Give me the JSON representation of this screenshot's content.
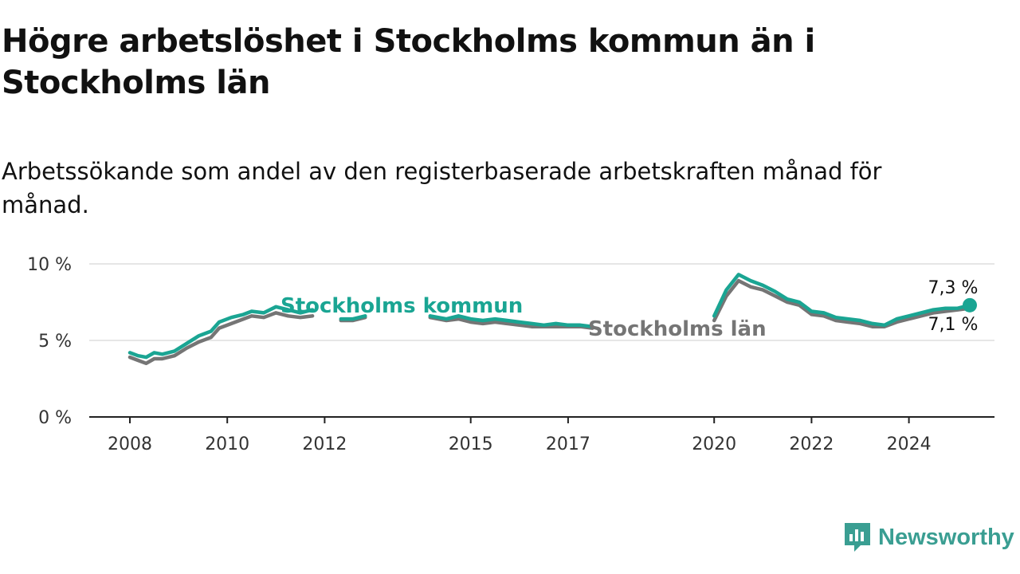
{
  "title": "Högre arbetslöshet i Stockholms kommun än i Stockholms län",
  "subtitle": "Arbetssökande som andel av den registerbaserade arbetskraften månad för månad.",
  "brand": {
    "name": "Newsworthy",
    "icon": "newsworthy-logo-icon",
    "color": "#3a9e92"
  },
  "chart_data": {
    "type": "line",
    "x_ticks": [
      "2008",
      "2010",
      "2012",
      "2015",
      "2017",
      "2020",
      "2022",
      "2024"
    ],
    "y_ticks": [
      "0 %",
      "5 %",
      "10 %"
    ],
    "ylim": [
      0,
      10
    ],
    "grid": "horizontal",
    "colors": {
      "kommun": "#1aa593",
      "lan": "#757575",
      "grid": "#dddddd",
      "axis": "#222222"
    },
    "series": [
      {
        "name": "Stockholms kommun",
        "color": "#1aa593",
        "end_label": "7,3 %",
        "segments": [
          [
            [
              "2008-01",
              4.2
            ],
            [
              "2008-03",
              4.0
            ],
            [
              "2008-05",
              3.9
            ],
            [
              "2008-07",
              4.2
            ],
            [
              "2008-09",
              4.1
            ],
            [
              "2008-12",
              4.3
            ],
            [
              "2009-03",
              4.8
            ],
            [
              "2009-06",
              5.3
            ],
            [
              "2009-09",
              5.6
            ],
            [
              "2009-11",
              6.2
            ],
            [
              "2010-02",
              6.5
            ],
            [
              "2010-05",
              6.7
            ],
            [
              "2010-07",
              6.9
            ],
            [
              "2010-10",
              6.8
            ],
            [
              "2011-01",
              7.2
            ],
            [
              "2011-04",
              7.0
            ],
            [
              "2011-07",
              6.8
            ],
            [
              "2011-10",
              7.0
            ]
          ],
          [
            [
              "2012-05",
              6.4
            ],
            [
              "2012-08",
              6.4
            ],
            [
              "2012-11",
              6.6
            ]
          ],
          [
            [
              "2014-03",
              6.6
            ],
            [
              "2014-07",
              6.4
            ],
            [
              "2014-10",
              6.6
            ],
            [
              "2015-01",
              6.4
            ],
            [
              "2015-04",
              6.3
            ],
            [
              "2015-07",
              6.4
            ],
            [
              "2015-10",
              6.3
            ],
            [
              "2016-01",
              6.2
            ],
            [
              "2016-04",
              6.1
            ],
            [
              "2016-07",
              6.0
            ],
            [
              "2016-10",
              6.1
            ],
            [
              "2017-01",
              6.0
            ],
            [
              "2017-04",
              6.0
            ],
            [
              "2017-07",
              5.9
            ]
          ],
          [
            [
              "2020-01",
              6.6
            ],
            [
              "2020-04",
              8.3
            ],
            [
              "2020-07",
              9.3
            ],
            [
              "2020-10",
              8.9
            ],
            [
              "2021-01",
              8.6
            ],
            [
              "2021-04",
              8.2
            ],
            [
              "2021-07",
              7.7
            ],
            [
              "2021-10",
              7.5
            ],
            [
              "2022-01",
              6.9
            ],
            [
              "2022-04",
              6.8
            ],
            [
              "2022-07",
              6.5
            ],
            [
              "2022-10",
              6.4
            ],
            [
              "2023-01",
              6.3
            ],
            [
              "2023-04",
              6.1
            ],
            [
              "2023-07",
              6.0
            ],
            [
              "2023-10",
              6.4
            ],
            [
              "2024-01",
              6.6
            ],
            [
              "2024-04",
              6.8
            ],
            [
              "2024-07",
              7.0
            ],
            [
              "2024-10",
              7.1
            ],
            [
              "2025-01",
              7.1
            ],
            [
              "2025-04",
              7.3
            ]
          ]
        ]
      },
      {
        "name": "Stockholms län",
        "color": "#757575",
        "end_label": "7,1 %",
        "segments": [
          [
            [
              "2008-01",
              3.9
            ],
            [
              "2008-03",
              3.7
            ],
            [
              "2008-05",
              3.5
            ],
            [
              "2008-07",
              3.8
            ],
            [
              "2008-09",
              3.8
            ],
            [
              "2008-12",
              4.0
            ],
            [
              "2009-03",
              4.5
            ],
            [
              "2009-06",
              4.9
            ],
            [
              "2009-09",
              5.2
            ],
            [
              "2009-11",
              5.8
            ],
            [
              "2010-02",
              6.1
            ],
            [
              "2010-05",
              6.4
            ],
            [
              "2010-07",
              6.6
            ],
            [
              "2010-10",
              6.5
            ],
            [
              "2011-01",
              6.8
            ],
            [
              "2011-04",
              6.6
            ],
            [
              "2011-07",
              6.5
            ],
            [
              "2011-10",
              6.6
            ]
          ],
          [
            [
              "2012-05",
              6.3
            ],
            [
              "2012-08",
              6.3
            ],
            [
              "2012-11",
              6.5
            ]
          ],
          [
            [
              "2014-03",
              6.5
            ],
            [
              "2014-07",
              6.3
            ],
            [
              "2014-10",
              6.4
            ],
            [
              "2015-01",
              6.2
            ],
            [
              "2015-04",
              6.1
            ],
            [
              "2015-07",
              6.2
            ],
            [
              "2015-10",
              6.1
            ],
            [
              "2016-01",
              6.0
            ],
            [
              "2016-04",
              5.9
            ],
            [
              "2016-07",
              5.9
            ],
            [
              "2016-10",
              5.9
            ],
            [
              "2017-01",
              5.9
            ],
            [
              "2017-04",
              5.9
            ],
            [
              "2017-07",
              5.8
            ]
          ],
          [
            [
              "2020-01",
              6.3
            ],
            [
              "2020-04",
              7.9
            ],
            [
              "2020-07",
              8.9
            ],
            [
              "2020-10",
              8.5
            ],
            [
              "2021-01",
              8.3
            ],
            [
              "2021-04",
              7.9
            ],
            [
              "2021-07",
              7.5
            ],
            [
              "2021-10",
              7.3
            ],
            [
              "2022-01",
              6.7
            ],
            [
              "2022-04",
              6.6
            ],
            [
              "2022-07",
              6.3
            ],
            [
              "2022-10",
              6.2
            ],
            [
              "2023-01",
              6.1
            ],
            [
              "2023-04",
              5.9
            ],
            [
              "2023-07",
              5.9
            ],
            [
              "2023-10",
              6.2
            ],
            [
              "2024-01",
              6.4
            ],
            [
              "2024-04",
              6.6
            ],
            [
              "2024-07",
              6.8
            ],
            [
              "2024-10",
              6.9
            ],
            [
              "2025-01",
              7.0
            ],
            [
              "2025-04",
              7.1
            ]
          ]
        ]
      }
    ]
  }
}
